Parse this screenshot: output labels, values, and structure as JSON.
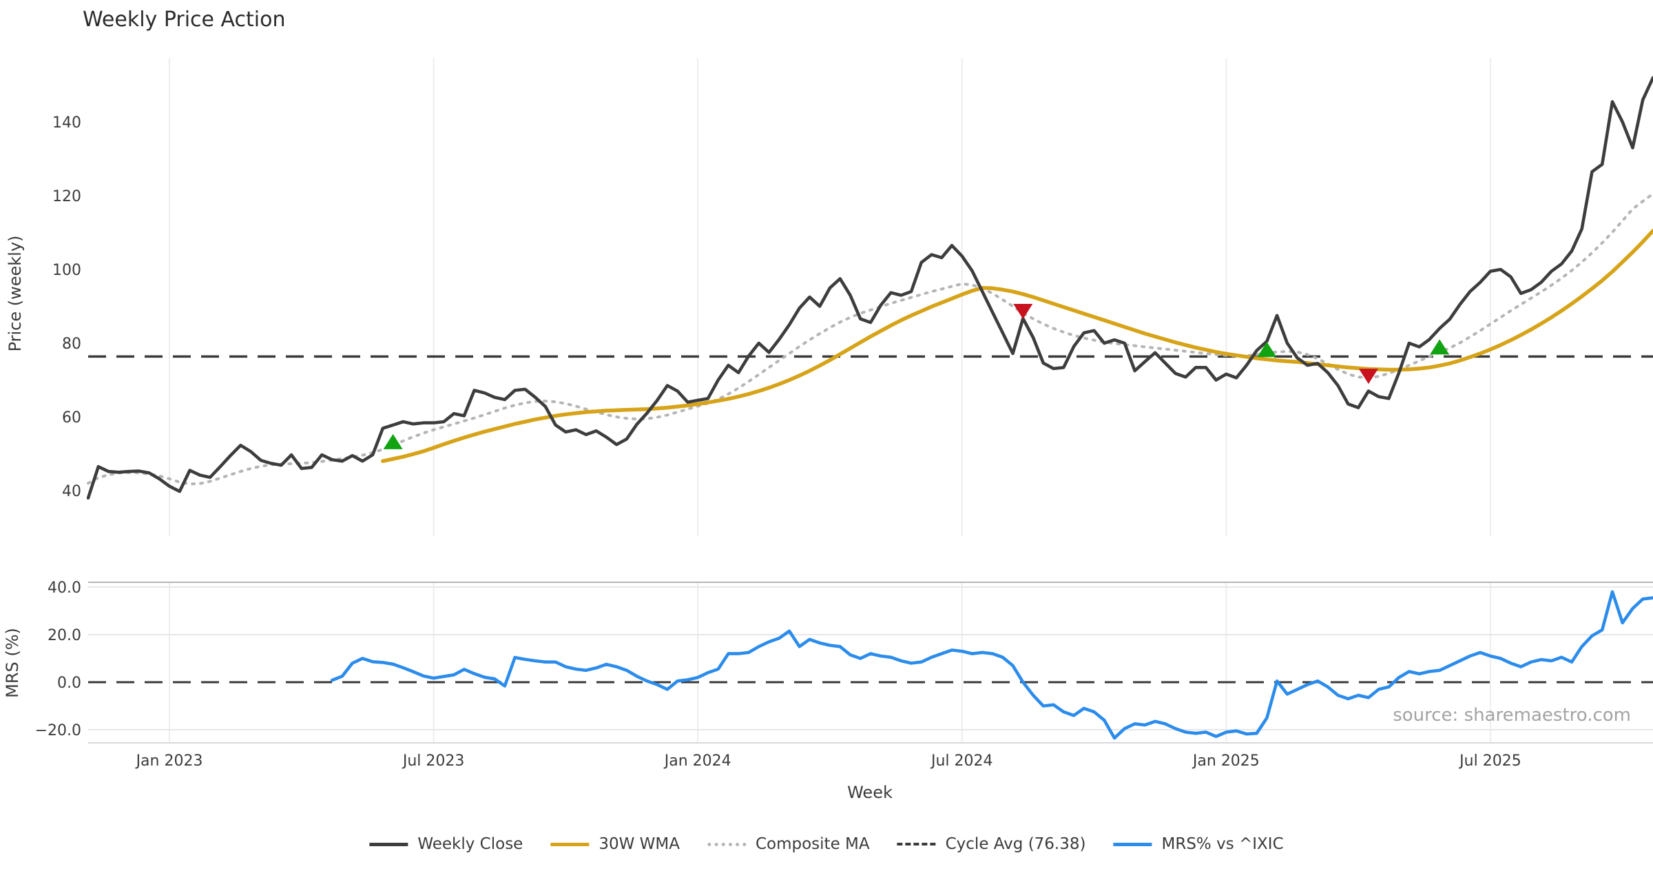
{
  "title": "Weekly Price Action",
  "xlabel": "Week",
  "source": "source: sharemaestro.com",
  "price_panel": {
    "ylabel": "Price (weekly)",
    "yticks": [
      140,
      120,
      100,
      80,
      60,
      40
    ],
    "cycle_avg": 76.38
  },
  "mrs_panel": {
    "ylabel": "MRS (%)",
    "ytick_labels": [
      "40.0",
      "20.0",
      "0.0",
      "−20.0"
    ],
    "ytick_values": [
      40,
      20,
      0,
      -20
    ],
    "zero_line": 0
  },
  "xaxis": {
    "tick_labels": [
      "Jan 2023",
      "Jul 2023",
      "Jan 2024",
      "Jul 2024",
      "Jan 2025",
      "Jul 2025"
    ],
    "tick_week_indices": [
      8,
      34,
      60,
      86,
      112,
      138
    ]
  },
  "legend": [
    {
      "label": "Weekly Close",
      "swatch": "solid-dark"
    },
    {
      "label": "30W WMA",
      "swatch": "solid-gold"
    },
    {
      "label": "Composite MA",
      "swatch": "dotted-gray"
    },
    {
      "label": "Cycle Avg (76.38)",
      "swatch": "dashed-dark"
    },
    {
      "label": "MRS% vs ^IXIC",
      "swatch": "solid-blue"
    }
  ],
  "colors": {
    "close": "#3d3d3d",
    "wma": "#d6a319",
    "composite": "#b5b5b5",
    "cycle_avg": "#3a3a3a",
    "mrs": "#2b8ceb",
    "buy_marker": "#12a312",
    "sell_marker": "#c8121e",
    "grid": "#ededed",
    "mrs_grid": "#e7e7ea",
    "spine": "#b5b5ba",
    "text": "#3b3b3b",
    "source_text": "#a3a3a3"
  },
  "chart_data": [
    {
      "type": "line",
      "panel": "price",
      "title": "Weekly Price Action",
      "xlabel": "Week",
      "ylabel": "Price (weekly)",
      "ylim": [
        33,
        158
      ],
      "x_start_week": "2022-11-07",
      "x_step_days": 7,
      "weeks_total": 155,
      "grid": "vertical-only",
      "series": [
        {
          "name": "Weekly Close",
          "start_index": 0,
          "values": [
            38.0,
            46.5,
            45.2,
            45.0,
            45.2,
            45.3,
            44.8,
            43.2,
            41.2,
            39.8,
            45.5,
            44.2,
            43.6,
            46.5,
            49.5,
            52.3,
            50.6,
            48.2,
            47.4,
            46.9,
            49.7,
            46.0,
            46.3,
            49.7,
            48.4,
            48.0,
            49.5,
            48.0,
            49.7,
            56.9,
            57.8,
            58.7,
            58.1,
            58.4,
            58.4,
            58.7,
            60.9,
            60.3,
            67.2,
            66.5,
            65.3,
            64.7,
            67.2,
            67.5,
            65.3,
            62.8,
            57.8,
            55.9,
            56.5,
            55.2,
            56.2,
            54.5,
            52.5,
            54.0,
            58.0,
            61.0,
            64.5,
            68.5,
            67.0,
            64.0,
            64.5,
            65.0,
            70.0,
            74.0,
            72.0,
            76.5,
            80.0,
            77.5,
            81.0,
            85.0,
            89.5,
            92.5,
            90.0,
            95.0,
            97.5,
            93.0,
            86.6,
            85.6,
            90.3,
            93.7,
            93.0,
            94.0,
            101.9,
            104.0,
            103.2,
            106.5,
            103.6,
            99.6,
            94.0,
            88.4,
            82.8,
            77.2,
            86.7,
            81.5,
            74.6,
            73.1,
            73.4,
            79.1,
            82.8,
            83.4,
            80.0,
            80.9,
            80.0,
            72.5,
            75.0,
            77.4,
            74.6,
            71.8,
            70.8,
            73.4,
            73.4,
            70.0,
            71.6,
            70.6,
            74.0,
            78.0,
            80.5,
            87.5,
            80.0,
            76.0,
            74.0,
            74.5,
            72.0,
            68.5,
            63.5,
            62.5,
            67.0,
            65.5,
            65.0,
            72.0,
            80.0,
            79.0,
            81.0,
            84.0,
            86.5,
            90.5,
            94.0,
            96.5,
            99.5,
            100.0,
            98.0,
            93.5,
            94.5,
            96.5,
            99.5,
            101.5,
            105.0,
            111.0,
            126.5,
            128.5,
            145.5,
            140.0,
            133.0,
            146.0,
            152.0
          ]
        },
        {
          "name": "30W WMA",
          "start_index": 29,
          "values": [
            48.0,
            48.6,
            49.2,
            49.9,
            50.7,
            51.6,
            52.6,
            53.5,
            54.4,
            55.2,
            56.0,
            56.7,
            57.4,
            58.1,
            58.7,
            59.3,
            59.8,
            60.3,
            60.7,
            61.0,
            61.3,
            61.5,
            61.7,
            61.8,
            61.9,
            62.0,
            62.1,
            62.3,
            62.5,
            62.8,
            63.1,
            63.5,
            63.9,
            64.4,
            64.9,
            65.5,
            66.2,
            67.0,
            67.9,
            68.9,
            70.0,
            71.2,
            72.5,
            73.9,
            75.4,
            77.0,
            78.6,
            80.2,
            81.8,
            83.3,
            84.8,
            86.2,
            87.5,
            88.7,
            89.9,
            91.0,
            92.1,
            93.2,
            94.2,
            95.0,
            94.9,
            94.5,
            94.0,
            93.3,
            92.5,
            91.6,
            90.7,
            89.8,
            88.9,
            88.0,
            87.1,
            86.2,
            85.3,
            84.4,
            83.5,
            82.6,
            81.8,
            81.0,
            80.2,
            79.5,
            78.8,
            78.2,
            77.6,
            77.1,
            76.7,
            76.3,
            75.9,
            75.6,
            75.3,
            75.1,
            74.9,
            74.6,
            74.3,
            74.0,
            73.7,
            73.4,
            73.2,
            73.0,
            72.9,
            72.8,
            72.8,
            72.9,
            73.1,
            73.4,
            73.9,
            74.5,
            75.3,
            76.2,
            77.2,
            78.3,
            79.5,
            80.8,
            82.2,
            83.7,
            85.3,
            87.0,
            88.8,
            90.7,
            92.7,
            94.8,
            97.0,
            99.4,
            102.0,
            104.7,
            107.5,
            110.5
          ]
        },
        {
          "name": "Composite MA",
          "start_index": 0,
          "values": [
            42.0,
            43.5,
            44.3,
            44.8,
            44.9,
            44.8,
            44.5,
            44.0,
            43.2,
            42.3,
            41.8,
            41.9,
            42.5,
            43.4,
            44.3,
            45.2,
            46.0,
            46.6,
            47.0,
            47.2,
            47.3,
            47.4,
            47.6,
            47.9,
            48.3,
            48.7,
            49.1,
            49.6,
            50.3,
            51.2,
            52.3,
            53.5,
            54.6,
            55.6,
            56.5,
            57.3,
            58.1,
            58.9,
            59.7,
            60.6,
            61.5,
            62.4,
            63.2,
            63.8,
            64.2,
            64.3,
            64.1,
            63.6,
            62.9,
            62.1,
            61.3,
            60.6,
            60.0,
            59.6,
            59.4,
            59.5,
            59.9,
            60.5,
            61.3,
            62.1,
            62.9,
            63.7,
            64.8,
            66.2,
            67.8,
            69.6,
            71.5,
            73.4,
            75.3,
            77.2,
            79.1,
            80.9,
            82.6,
            84.2,
            85.7,
            87.0,
            88.1,
            89.0,
            89.9,
            90.8,
            91.6,
            92.4,
            93.2,
            94.0,
            94.7,
            95.4,
            96.1,
            95.8,
            94.9,
            93.5,
            91.8,
            90.0,
            88.2,
            86.6,
            85.2,
            84.0,
            83.0,
            82.1,
            81.4,
            80.8,
            80.3,
            79.9,
            79.6,
            79.3,
            79.0,
            78.7,
            78.4,
            78.1,
            77.8,
            77.5,
            77.2,
            76.9,
            76.7,
            76.5,
            76.6,
            76.9,
            77.3,
            77.6,
            77.8,
            77.6,
            76.9,
            75.8,
            74.4,
            72.9,
            71.6,
            70.8,
            70.6,
            71.0,
            71.8,
            72.8,
            74.0,
            75.2,
            76.4,
            77.5,
            78.7,
            80.1,
            81.7,
            83.4,
            85.2,
            87.0,
            88.8,
            90.5,
            92.2,
            93.9,
            95.7,
            97.6,
            99.7,
            102.0,
            104.5,
            107.2,
            110.1,
            113.2,
            116.4,
            118.5,
            120.5
          ]
        },
        {
          "name": "Cycle Avg (76.38)",
          "type": "hline",
          "value": 76.38
        }
      ],
      "markers": {
        "buy": [
          {
            "week_index": 30,
            "y": 53.3
          },
          {
            "week_index": 116,
            "y": 78.3
          },
          {
            "week_index": 133,
            "y": 79.0
          }
        ],
        "sell": [
          {
            "week_index": 92,
            "y": 88.6
          },
          {
            "week_index": 126,
            "y": 71.0
          }
        ]
      }
    },
    {
      "type": "line",
      "panel": "mrs",
      "ylabel": "MRS (%)",
      "ylim": [
        -25,
        41
      ],
      "zero_line": 0,
      "series": [
        {
          "name": "MRS% vs ^IXIC",
          "start_index": 24,
          "values": [
            0.8,
            2.5,
            8.0,
            10.0,
            8.6,
            8.3,
            7.6,
            6.1,
            4.4,
            2.6,
            1.7,
            2.4,
            3.1,
            5.4,
            3.6,
            2.1,
            1.4,
            -1.6,
            10.4,
            9.6,
            9.0,
            8.5,
            8.5,
            6.5,
            5.5,
            5.0,
            6.0,
            7.5,
            6.5,
            5.0,
            2.5,
            0.5,
            -1.0,
            -3.0,
            0.5,
            1.0,
            2.0,
            4.0,
            5.5,
            12.0,
            12.0,
            12.5,
            15.0,
            17.0,
            18.5,
            21.5,
            15.0,
            18.0,
            16.5,
            15.5,
            15.0,
            11.5,
            10.0,
            12.0,
            11.0,
            10.5,
            9.0,
            8.0,
            8.5,
            10.5,
            12.0,
            13.5,
            13.0,
            12.0,
            12.5,
            12.0,
            10.5,
            7.0,
            0.0,
            -5.5,
            -10.0,
            -9.5,
            -12.5,
            -14.0,
            -11.0,
            -12.5,
            -16.0,
            -23.5,
            -19.5,
            -17.5,
            -18.0,
            -16.5,
            -17.5,
            -19.5,
            -21.0,
            -21.5,
            -21.0,
            -22.8,
            -21.0,
            -20.5,
            -21.8,
            -21.5,
            -15.0,
            0.5,
            -5.0,
            -3.0,
            -1.0,
            0.5,
            -2.0,
            -5.5,
            -7.0,
            -5.5,
            -6.5,
            -3.0,
            -2.0,
            2.0,
            4.5,
            3.5,
            4.5,
            5.0,
            7.0,
            9.0,
            11.0,
            12.5,
            11.0,
            10.0,
            8.0,
            6.5,
            8.5,
            9.5,
            9.0,
            10.5,
            8.5,
            15.0,
            19.5,
            22.0,
            38.0,
            25.0,
            31.0,
            35.0,
            35.5
          ]
        }
      ]
    }
  ]
}
